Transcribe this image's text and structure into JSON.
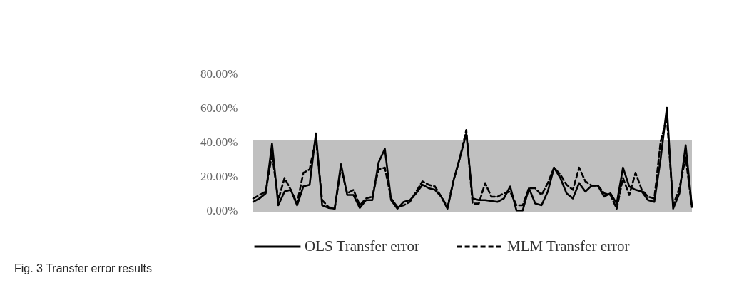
{
  "chart_data": {
    "type": "line",
    "categories": [
      null,
      null,
      null,
      null,
      null,
      null,
      null,
      null,
      null,
      null,
      null,
      null,
      null,
      null,
      null,
      null,
      null,
      null,
      null,
      null,
      null,
      null,
      null,
      null,
      null,
      null,
      null,
      null,
      null,
      null,
      null,
      null,
      null,
      null,
      null,
      null,
      null,
      null,
      null,
      null,
      null,
      null,
      null,
      null,
      null,
      null,
      null,
      null,
      null,
      null,
      null,
      null,
      null,
      null,
      null,
      null,
      null,
      null,
      null,
      null,
      null,
      null,
      null,
      null,
      null,
      null,
      null,
      null,
      null,
      null,
      null
    ],
    "series": [
      {
        "name": "OLS Transfer error",
        "color": "#000000",
        "line_style": "solid",
        "values": [
          5,
          7,
          10,
          39,
          3,
          11,
          12,
          3,
          14,
          15,
          45,
          3,
          1.5,
          1,
          27,
          9,
          9,
          1.5,
          6,
          6,
          28,
          36,
          6,
          1,
          5,
          6,
          10,
          15,
          13,
          12,
          8,
          1,
          18,
          31,
          45,
          7,
          6,
          6,
          5.5,
          5,
          7,
          14,
          0,
          0,
          13,
          4,
          3,
          11,
          25,
          19,
          10,
          7,
          16,
          11,
          14.5,
          14.5,
          8,
          10,
          4,
          25,
          14,
          12,
          11,
          6,
          5,
          30,
          60,
          1,
          10,
          38,
          2
        ]
      },
      {
        "name": "MLM Transfer error",
        "color": "#000000",
        "line_style": "dashed",
        "values": [
          7,
          9,
          11,
          33,
          6,
          19,
          12,
          4,
          22,
          24,
          42,
          6,
          2,
          1,
          25,
          10,
          12,
          3,
          7,
          8,
          24,
          25,
          7,
          2,
          3,
          5,
          11,
          17,
          15,
          14,
          8,
          2,
          18,
          31,
          47,
          4,
          4,
          16,
          8,
          8,
          10,
          11,
          3,
          3,
          13,
          13,
          9,
          16,
          25,
          21,
          15,
          12,
          25,
          17,
          14.5,
          14.5,
          10,
          9,
          1,
          19,
          9,
          22,
          12,
          8,
          7,
          40,
          54,
          3,
          13,
          31,
          2
        ]
      }
    ],
    "ylim": [
      -2,
      80
    ],
    "yticks": [
      {
        "value": 0,
        "label": "0.00%"
      },
      {
        "value": 20,
        "label": "20.00%"
      },
      {
        "value": 40,
        "label": "40.00%"
      },
      {
        "value": 60,
        "label": "60.00%"
      },
      {
        "value": 80,
        "label": "80.00%"
      }
    ],
    "bands": [
      {
        "axis": "y",
        "from": -1,
        "to": 41,
        "color": "#c0c0c0"
      }
    ],
    "grid": false,
    "legend": "bottom",
    "marker": "none",
    "annotations": [
      "Fig. 3 Transfer error results"
    ]
  }
}
